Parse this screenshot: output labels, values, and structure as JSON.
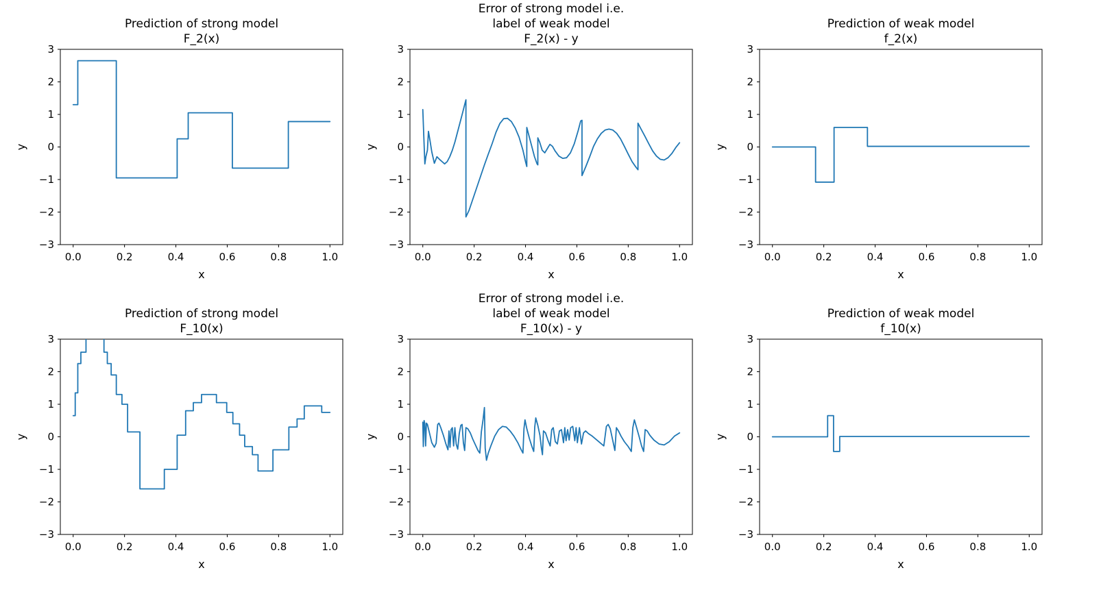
{
  "figure": {
    "background": "#ffffff",
    "line_color": "#1f77b4",
    "axis_color": "#000000",
    "text_color": "#000000"
  },
  "chart_data": [
    {
      "id": "F_2_strong",
      "type": "step",
      "title_lines": [
        "Prediction of strong model",
        "F_2(x)"
      ],
      "xlabel": "x",
      "ylabel": "y",
      "xlim": [
        -0.05,
        1.05
      ],
      "ylim": [
        -3,
        3
      ],
      "xticks": [
        0.0,
        0.2,
        0.4,
        0.6,
        0.8,
        1.0
      ],
      "xtick_labels": [
        "0.0",
        "0.2",
        "0.4",
        "0.6",
        "0.8",
        "1.0"
      ],
      "yticks": [
        -3,
        -2,
        -1,
        0,
        1,
        2,
        3
      ],
      "ytick_labels": [
        "−3",
        "−2",
        "−1",
        "0",
        "1",
        "2",
        "3"
      ],
      "edges": [
        0,
        0.018,
        0.168,
        0.405,
        0.448,
        0.62,
        0.838,
        1.0
      ],
      "values": [
        1.3,
        2.65,
        -0.95,
        0.25,
        1.05,
        -0.65,
        0.78
      ]
    },
    {
      "id": "F_2_error",
      "type": "line",
      "title_lines": [
        "Error of strong model i.e.",
        "label of weak model",
        "F_2(x) - y"
      ],
      "xlabel": "x",
      "ylabel": "y",
      "xlim": [
        -0.05,
        1.05
      ],
      "ylim": [
        -3,
        3
      ],
      "xticks": [
        0.0,
        0.2,
        0.4,
        0.6,
        0.8,
        1.0
      ],
      "xtick_labels": [
        "0.0",
        "0.2",
        "0.4",
        "0.6",
        "0.8",
        "1.0"
      ],
      "yticks": [
        -3,
        -2,
        -1,
        0,
        1,
        2,
        3
      ],
      "ytick_labels": [
        "−3",
        "−2",
        "−1",
        "0",
        "1",
        "2",
        "3"
      ],
      "points": [
        [
          0.0,
          1.15
        ],
        [
          0.004,
          0.3
        ],
        [
          0.008,
          -0.52
        ],
        [
          0.012,
          -0.3
        ],
        [
          0.018,
          -0.1
        ],
        [
          0.022,
          0.48
        ],
        [
          0.028,
          0.2
        ],
        [
          0.035,
          -0.15
        ],
        [
          0.045,
          -0.5
        ],
        [
          0.055,
          -0.3
        ],
        [
          0.065,
          -0.38
        ],
        [
          0.075,
          -0.45
        ],
        [
          0.085,
          -0.52
        ],
        [
          0.095,
          -0.45
        ],
        [
          0.105,
          -0.3
        ],
        [
          0.115,
          -0.1
        ],
        [
          0.125,
          0.15
        ],
        [
          0.135,
          0.45
        ],
        [
          0.145,
          0.75
        ],
        [
          0.155,
          1.05
        ],
        [
          0.163,
          1.3
        ],
        [
          0.168,
          1.45
        ],
        [
          0.168,
          -2.15
        ],
        [
          0.18,
          -1.95
        ],
        [
          0.195,
          -1.6
        ],
        [
          0.21,
          -1.25
        ],
        [
          0.225,
          -0.9
        ],
        [
          0.24,
          -0.55
        ],
        [
          0.255,
          -0.22
        ],
        [
          0.27,
          0.1
        ],
        [
          0.285,
          0.45
        ],
        [
          0.3,
          0.72
        ],
        [
          0.315,
          0.87
        ],
        [
          0.33,
          0.88
        ],
        [
          0.345,
          0.78
        ],
        [
          0.36,
          0.58
        ],
        [
          0.375,
          0.3
        ],
        [
          0.39,
          -0.1
        ],
        [
          0.4,
          -0.45
        ],
        [
          0.405,
          -0.6
        ],
        [
          0.405,
          0.6
        ],
        [
          0.415,
          0.3
        ],
        [
          0.425,
          0.0
        ],
        [
          0.435,
          -0.3
        ],
        [
          0.445,
          -0.52
        ],
        [
          0.448,
          -0.55
        ],
        [
          0.448,
          0.28
        ],
        [
          0.455,
          0.15
        ],
        [
          0.465,
          -0.1
        ],
        [
          0.475,
          -0.18
        ],
        [
          0.485,
          -0.05
        ],
        [
          0.495,
          0.08
        ],
        [
          0.505,
          0.02
        ],
        [
          0.515,
          -0.12
        ],
        [
          0.53,
          -0.28
        ],
        [
          0.545,
          -0.35
        ],
        [
          0.56,
          -0.33
        ],
        [
          0.575,
          -0.18
        ],
        [
          0.59,
          0.1
        ],
        [
          0.605,
          0.5
        ],
        [
          0.615,
          0.8
        ],
        [
          0.62,
          0.82
        ],
        [
          0.62,
          -0.88
        ],
        [
          0.635,
          -0.6
        ],
        [
          0.65,
          -0.3
        ],
        [
          0.665,
          0.02
        ],
        [
          0.68,
          0.25
        ],
        [
          0.695,
          0.42
        ],
        [
          0.71,
          0.52
        ],
        [
          0.725,
          0.55
        ],
        [
          0.74,
          0.52
        ],
        [
          0.755,
          0.42
        ],
        [
          0.77,
          0.25
        ],
        [
          0.785,
          0.02
        ],
        [
          0.8,
          -0.22
        ],
        [
          0.815,
          -0.45
        ],
        [
          0.83,
          -0.62
        ],
        [
          0.838,
          -0.7
        ],
        [
          0.838,
          0.73
        ],
        [
          0.85,
          0.55
        ],
        [
          0.865,
          0.33
        ],
        [
          0.88,
          0.1
        ],
        [
          0.895,
          -0.12
        ],
        [
          0.91,
          -0.28
        ],
        [
          0.925,
          -0.38
        ],
        [
          0.94,
          -0.4
        ],
        [
          0.955,
          -0.33
        ],
        [
          0.97,
          -0.2
        ],
        [
          0.985,
          -0.02
        ],
        [
          1.0,
          0.13
        ]
      ]
    },
    {
      "id": "f_2_weak",
      "type": "step",
      "title_lines": [
        "Prediction of weak model",
        "f_2(x)"
      ],
      "xlabel": "x",
      "ylabel": "y",
      "xlim": [
        -0.05,
        1.05
      ],
      "ylim": [
        -3,
        3
      ],
      "xticks": [
        0.0,
        0.2,
        0.4,
        0.6,
        0.8,
        1.0
      ],
      "xtick_labels": [
        "0.0",
        "0.2",
        "0.4",
        "0.6",
        "0.8",
        "1.0"
      ],
      "yticks": [
        -3,
        -2,
        -1,
        0,
        1,
        2,
        3
      ],
      "ytick_labels": [
        "−3",
        "−2",
        "−1",
        "0",
        "1",
        "2",
        "3"
      ],
      "edges": [
        0,
        0.168,
        0.24,
        0.37,
        1.0
      ],
      "values": [
        0.0,
        -1.08,
        0.6,
        0.02
      ]
    },
    {
      "id": "F_10_strong",
      "type": "step",
      "title_lines": [
        "Prediction of strong model",
        "F_10(x)"
      ],
      "xlabel": "x",
      "ylabel": "y",
      "xlim": [
        -0.05,
        1.05
      ],
      "ylim": [
        -3,
        3
      ],
      "xticks": [
        0.0,
        0.2,
        0.4,
        0.6,
        0.8,
        1.0
      ],
      "xtick_labels": [
        "0.0",
        "0.2",
        "0.4",
        "0.6",
        "0.8",
        "1.0"
      ],
      "yticks": [
        -3,
        -2,
        -1,
        0,
        1,
        2,
        3
      ],
      "ytick_labels": [
        "−3",
        "−2",
        "−1",
        "0",
        "1",
        "2",
        "3"
      ],
      "edges": [
        0,
        0.008,
        0.018,
        0.03,
        0.05,
        0.12,
        0.133,
        0.148,
        0.168,
        0.19,
        0.212,
        0.26,
        0.355,
        0.405,
        0.438,
        0.468,
        0.5,
        0.558,
        0.598,
        0.622,
        0.648,
        0.668,
        0.698,
        0.72,
        0.778,
        0.84,
        0.872,
        0.9,
        0.968,
        1.0
      ],
      "values": [
        0.65,
        1.35,
        2.25,
        2.6,
        3.05,
        2.6,
        2.25,
        1.9,
        1.3,
        1.0,
        0.15,
        -1.6,
        -1.0,
        0.05,
        0.8,
        1.05,
        1.3,
        1.05,
        0.75,
        0.4,
        0.05,
        -0.3,
        -0.55,
        -1.05,
        -0.4,
        0.3,
        0.55,
        0.95,
        0.75
      ]
    },
    {
      "id": "F_10_error",
      "type": "line",
      "title_lines": [
        "Error of strong model i.e.",
        "label of weak model",
        "F_10(x) - y"
      ],
      "xlabel": "x",
      "ylabel": "y",
      "xlim": [
        -0.05,
        1.05
      ],
      "ylim": [
        -3,
        3
      ],
      "xticks": [
        0.0,
        0.2,
        0.4,
        0.6,
        0.8,
        1.0
      ],
      "xtick_labels": [
        "0.0",
        "0.2",
        "0.4",
        "0.6",
        "0.8",
        "1.0"
      ],
      "yticks": [
        -3,
        -2,
        -1,
        0,
        1,
        2,
        3
      ],
      "ytick_labels": [
        "−3",
        "−2",
        "−1",
        "0",
        "1",
        "2",
        "3"
      ],
      "points": [
        [
          0.0,
          0.45
        ],
        [
          0.002,
          -0.3
        ],
        [
          0.005,
          0.5
        ],
        [
          0.008,
          0.4
        ],
        [
          0.011,
          -0.28
        ],
        [
          0.014,
          0.42
        ],
        [
          0.018,
          0.38
        ],
        [
          0.025,
          0.15
        ],
        [
          0.035,
          -0.18
        ],
        [
          0.045,
          -0.32
        ],
        [
          0.052,
          -0.2
        ],
        [
          0.058,
          0.38
        ],
        [
          0.063,
          0.42
        ],
        [
          0.07,
          0.28
        ],
        [
          0.08,
          0.05
        ],
        [
          0.09,
          -0.22
        ],
        [
          0.098,
          -0.4
        ],
        [
          0.102,
          0.18
        ],
        [
          0.106,
          -0.32
        ],
        [
          0.11,
          0.22
        ],
        [
          0.115,
          0.28
        ],
        [
          0.12,
          -0.28
        ],
        [
          0.125,
          0.28
        ],
        [
          0.13,
          -0.22
        ],
        [
          0.136,
          -0.38
        ],
        [
          0.142,
          0.1
        ],
        [
          0.148,
          0.35
        ],
        [
          0.153,
          0.38
        ],
        [
          0.158,
          -0.18
        ],
        [
          0.163,
          -0.42
        ],
        [
          0.168,
          0.28
        ],
        [
          0.175,
          0.25
        ],
        [
          0.185,
          0.12
        ],
        [
          0.195,
          -0.08
        ],
        [
          0.205,
          -0.25
        ],
        [
          0.215,
          -0.42
        ],
        [
          0.222,
          -0.5
        ],
        [
          0.228,
          0.15
        ],
        [
          0.235,
          0.55
        ],
        [
          0.24,
          0.9
        ],
        [
          0.243,
          -0.35
        ],
        [
          0.248,
          -0.72
        ],
        [
          0.255,
          -0.5
        ],
        [
          0.265,
          -0.28
        ],
        [
          0.28,
          0.02
        ],
        [
          0.295,
          0.22
        ],
        [
          0.31,
          0.32
        ],
        [
          0.325,
          0.3
        ],
        [
          0.34,
          0.18
        ],
        [
          0.355,
          0.02
        ],
        [
          0.37,
          -0.18
        ],
        [
          0.382,
          -0.38
        ],
        [
          0.39,
          -0.5
        ],
        [
          0.394,
          0.25
        ],
        [
          0.398,
          0.52
        ],
        [
          0.405,
          0.25
        ],
        [
          0.415,
          -0.05
        ],
        [
          0.425,
          -0.3
        ],
        [
          0.432,
          -0.45
        ],
        [
          0.436,
          0.3
        ],
        [
          0.44,
          0.58
        ],
        [
          0.448,
          0.35
        ],
        [
          0.456,
          0.05
        ],
        [
          0.462,
          -0.35
        ],
        [
          0.466,
          -0.55
        ],
        [
          0.47,
          0.18
        ],
        [
          0.478,
          0.12
        ],
        [
          0.488,
          -0.12
        ],
        [
          0.496,
          -0.28
        ],
        [
          0.502,
          0.22
        ],
        [
          0.508,
          0.28
        ],
        [
          0.516,
          -0.15
        ],
        [
          0.524,
          -0.22
        ],
        [
          0.532,
          0.18
        ],
        [
          0.54,
          0.22
        ],
        [
          0.548,
          -0.18
        ],
        [
          0.553,
          0.28
        ],
        [
          0.558,
          -0.12
        ],
        [
          0.564,
          0.22
        ],
        [
          0.57,
          -0.1
        ],
        [
          0.576,
          0.28
        ],
        [
          0.584,
          0.32
        ],
        [
          0.592,
          -0.12
        ],
        [
          0.597,
          0.28
        ],
        [
          0.602,
          -0.18
        ],
        [
          0.61,
          0.28
        ],
        [
          0.618,
          -0.22
        ],
        [
          0.626,
          0.12
        ],
        [
          0.634,
          0.18
        ],
        [
          0.645,
          0.1
        ],
        [
          0.66,
          0.02
        ],
        [
          0.675,
          -0.08
        ],
        [
          0.69,
          -0.18
        ],
        [
          0.705,
          -0.28
        ],
        [
          0.715,
          0.32
        ],
        [
          0.722,
          0.38
        ],
        [
          0.73,
          0.25
        ],
        [
          0.74,
          -0.12
        ],
        [
          0.748,
          -0.42
        ],
        [
          0.754,
          0.28
        ],
        [
          0.762,
          0.18
        ],
        [
          0.772,
          0.02
        ],
        [
          0.785,
          -0.15
        ],
        [
          0.8,
          -0.3
        ],
        [
          0.812,
          -0.45
        ],
        [
          0.818,
          0.28
        ],
        [
          0.824,
          0.52
        ],
        [
          0.832,
          0.3
        ],
        [
          0.842,
          0.02
        ],
        [
          0.852,
          -0.28
        ],
        [
          0.86,
          -0.45
        ],
        [
          0.866,
          0.22
        ],
        [
          0.874,
          0.18
        ],
        [
          0.884,
          0.05
        ],
        [
          0.9,
          -0.1
        ],
        [
          0.92,
          -0.22
        ],
        [
          0.94,
          -0.25
        ],
        [
          0.96,
          -0.15
        ],
        [
          0.98,
          0.02
        ],
        [
          1.0,
          0.12
        ]
      ]
    },
    {
      "id": "f_10_weak",
      "type": "step",
      "title_lines": [
        "Prediction of weak model",
        "f_10(x)"
      ],
      "xlabel": "x",
      "ylabel": "y",
      "xlim": [
        -0.05,
        1.05
      ],
      "ylim": [
        -3,
        3
      ],
      "xticks": [
        0.0,
        0.2,
        0.4,
        0.6,
        0.8,
        1.0
      ],
      "xtick_labels": [
        "0.0",
        "0.2",
        "0.4",
        "0.6",
        "0.8",
        "1.0"
      ],
      "yticks": [
        -3,
        -2,
        -1,
        0,
        1,
        2,
        3
      ],
      "ytick_labels": [
        "−3",
        "−2",
        "−1",
        "0",
        "1",
        "2",
        "3"
      ],
      "edges": [
        0,
        0.215,
        0.238,
        0.262,
        1.0
      ],
      "values": [
        0.0,
        0.65,
        -0.45,
        0.01
      ]
    }
  ]
}
